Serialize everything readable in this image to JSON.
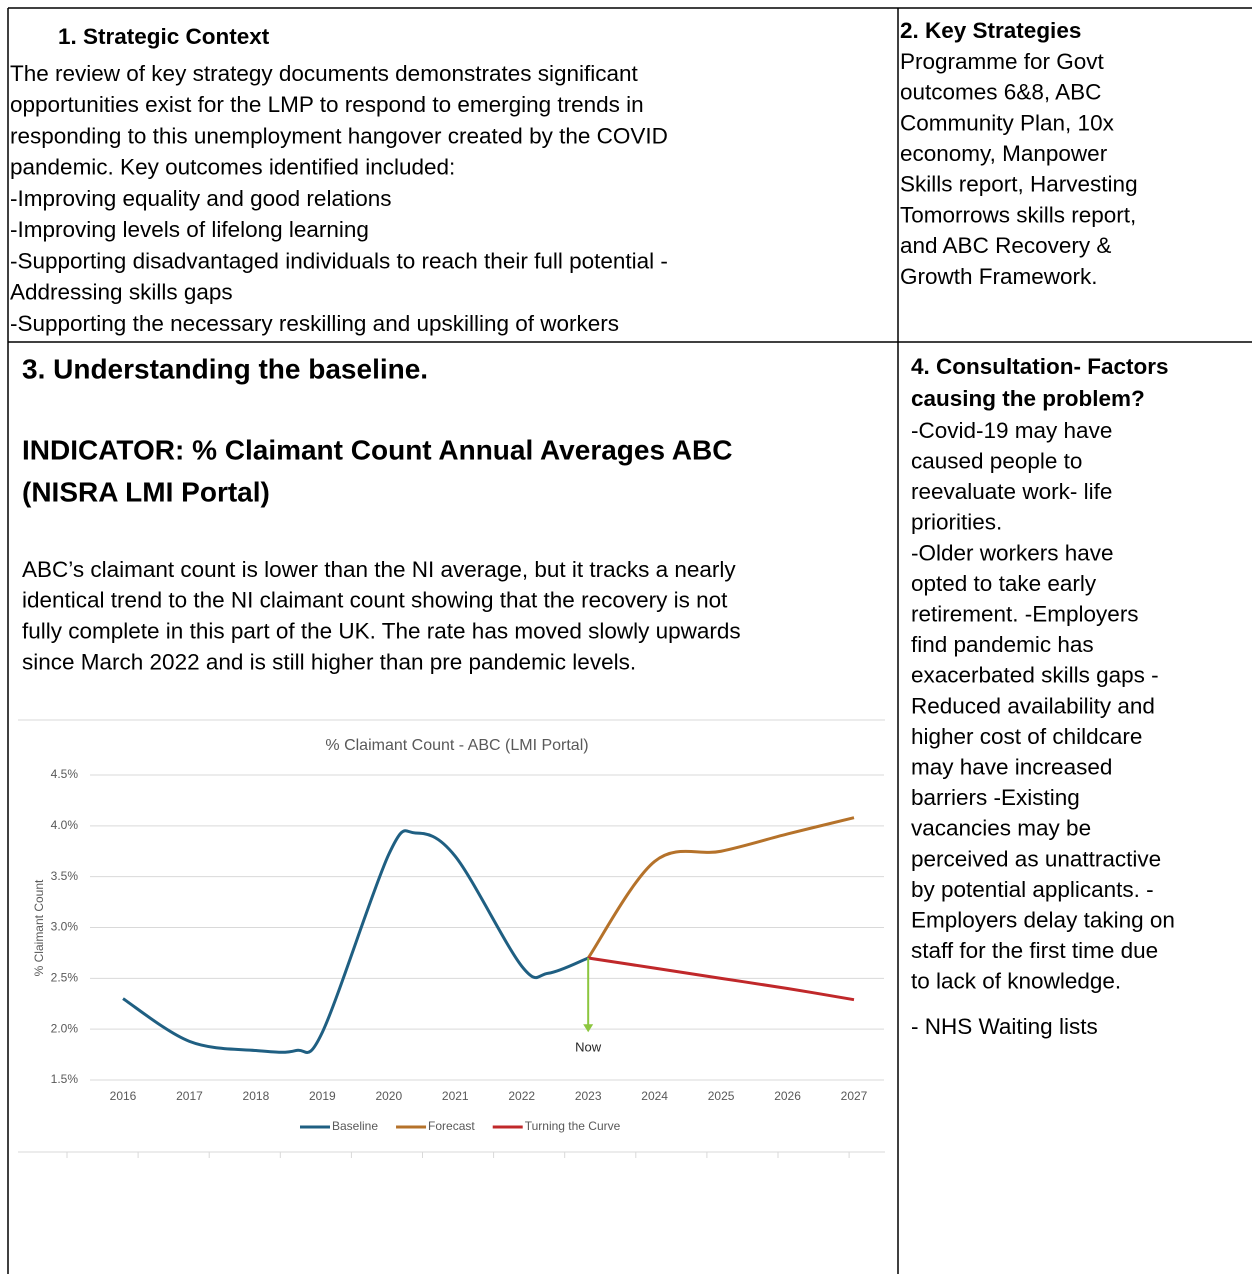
{
  "sections": [
    {
      "title": "1. Strategic Context",
      "lines": [
        "The review of key strategy documents demonstrates significant",
        "opportunities exist for the LMP to respond to emerging trends in",
        "responding to this unemployment hangover created by the COVID",
        "pandemic.  Key outcomes identified included:",
        "-Improving equality and good relations",
        "-Improving levels of lifelong learning",
        "-Supporting disadvantaged individuals to reach their full potential -",
        "Addressing skills gaps",
        "-Supporting the necessary reskilling and upskilling of workers"
      ]
    },
    {
      "title": "2. Key Strategies",
      "lines": [
        "Programme for Govt",
        "outcomes 6&8, ABC",
        "Community Plan, 10x",
        "economy, Manpower",
        "Skills report, Harvesting",
        "Tomorrows skills report,",
        "and ABC Recovery &",
        "Growth Framework."
      ]
    },
    {
      "title": "3. Understanding the baseline.",
      "indicator": [
        "INDICATOR: % Claimant Count Annual Averages ABC",
        "(NISRA LMI Portal)"
      ],
      "lines": [
        "ABC’s claimant count is lower than the NI average, but it tracks a nearly",
        "identical trend to the NI claimant count showing that the recovery is not",
        "fully complete in this part of the UK.  The rate has moved slowly upwards",
        "since March 2022 and is still higher than pre pandemic levels."
      ]
    },
    {
      "title": [
        "4. Consultation- Factors",
        "causing the problem?"
      ],
      "lines": [
        "-Covid-19 may have",
        "caused people to",
        "reevaluate work- life",
        "priorities.",
        "-Older workers have",
        "opted to take early",
        "retirement. -Employers",
        "find pandemic has",
        "exacerbated skills gaps -",
        "Reduced availability and",
        "higher cost of childcare",
        "may have increased",
        "barriers -Existing",
        "vacancies may be",
        "perceived as unattractive",
        "by potential applicants.   -",
        "Employers delay taking on",
        "staff for the first time due",
        "to lack of knowledge."
      ],
      "note": "- NHS Waiting lists"
    }
  ],
  "chart_data": {
    "type": "line",
    "title": "% Claimant Count - ABC (LMI Portal)",
    "y_label": "% Claimant Count",
    "xlim": [
      2016,
      2027
    ],
    "xticks": [
      2016,
      2017,
      2018,
      2019,
      2020,
      2021,
      2022,
      2023,
      2024,
      2025,
      2026,
      2027
    ],
    "ylim": [
      1.5,
      4.5
    ],
    "yticks": [
      {
        "value": 1.5,
        "label": "1.5%"
      },
      {
        "value": 2.0,
        "label": "2.0%"
      },
      {
        "value": 2.5,
        "label": "2.5%"
      },
      {
        "value": 3.0,
        "label": "3.0%"
      },
      {
        "value": 3.5,
        "label": "3.5%"
      },
      {
        "value": 4.0,
        "label": "4.0%"
      },
      {
        "value": 4.5,
        "label": "4.5%"
      }
    ],
    "grid": true,
    "legend": "bottom",
    "smooth": true,
    "series": [
      {
        "name": "Baseline",
        "color": "#1f5f82",
        "x": [
          2016,
          2017,
          2018,
          2018.6,
          2019,
          2020,
          2020.4,
          2021,
          2022,
          2022.4,
          2023
        ],
        "values": [
          2.3,
          1.88,
          1.79,
          1.79,
          1.97,
          3.72,
          3.93,
          3.7,
          2.62,
          2.55,
          2.7
        ]
      },
      {
        "name": "Forecast",
        "color": "#b5722a",
        "x": [
          2023,
          2024,
          2025,
          2026,
          2027
        ],
        "values": [
          2.7,
          3.65,
          3.75,
          3.92,
          4.08
        ]
      },
      {
        "name": "Turning the Curve",
        "color": "#c0282a",
        "x": [
          2023,
          2024,
          2025,
          2026,
          2027
        ],
        "values": [
          2.7,
          2.6,
          2.5,
          2.4,
          2.29
        ]
      }
    ],
    "annotation": {
      "text": "Now",
      "x": 2023,
      "value": 1.97,
      "color": "#8cc63f"
    }
  }
}
